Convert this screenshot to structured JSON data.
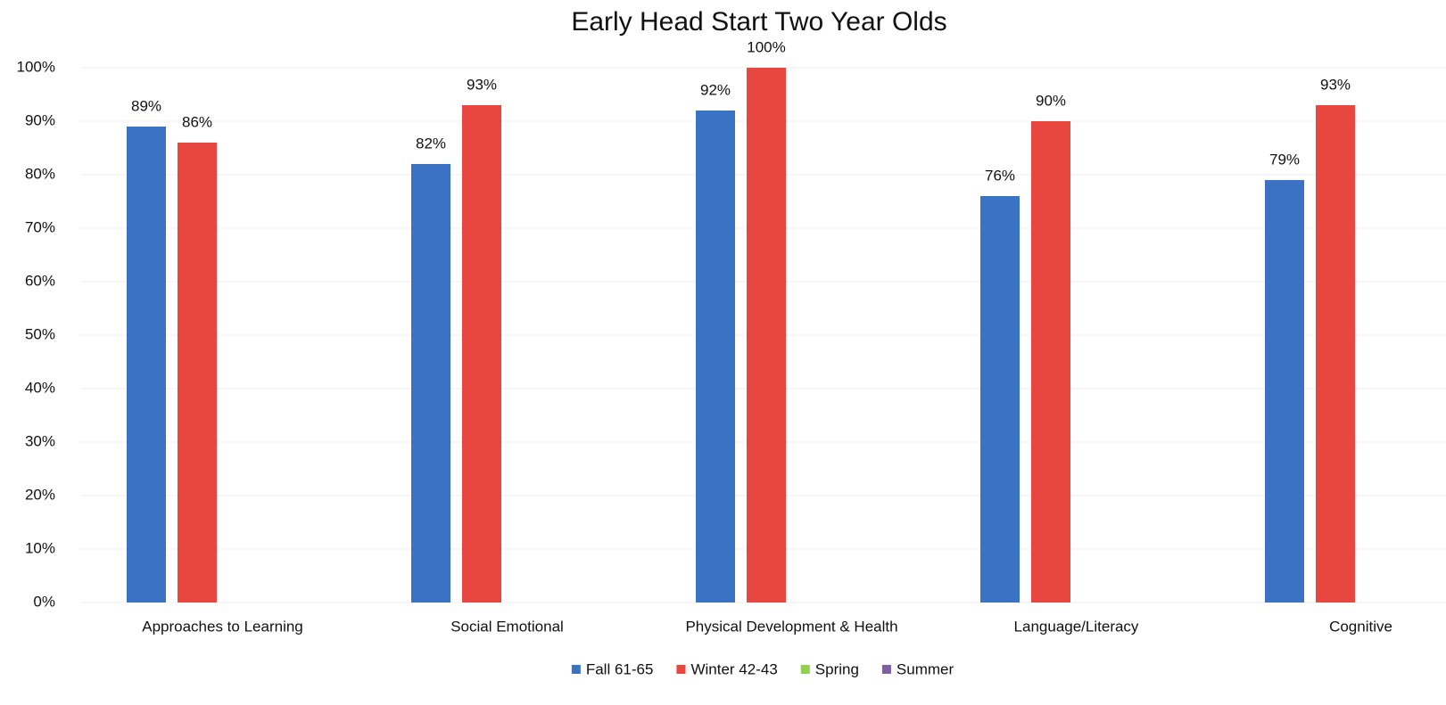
{
  "chart_data": {
    "type": "bar",
    "title": "Early Head Start  Two Year Olds",
    "categories": [
      "Approaches to Learning",
      "Social Emotional",
      "Physical Development & Health",
      "Language/Literacy",
      "Cognitive"
    ],
    "series": [
      {
        "name": "Fall 61-65",
        "color": "#3b72c4",
        "values": [
          89,
          82,
          92,
          76,
          79
        ],
        "value_labels": [
          "89%",
          "82%",
          "92%",
          "76%",
          "79%"
        ]
      },
      {
        "name": "Winter 42-43",
        "color": "#e8473f",
        "values": [
          86,
          93,
          100,
          90,
          93
        ],
        "value_labels": [
          "86%",
          "93%",
          "100%",
          "90%",
          "93%"
        ]
      },
      {
        "name": "Spring",
        "color": "#92d050",
        "values": [
          null,
          null,
          null,
          null,
          null
        ]
      },
      {
        "name": "Summer",
        "color": "#7f5fa3",
        "values": [
          null,
          null,
          null,
          null,
          null
        ]
      }
    ],
    "ylim": [
      0,
      100
    ],
    "yticks": [
      {
        "value": 0,
        "label": "0%"
      },
      {
        "value": 10,
        "label": "10%"
      },
      {
        "value": 20,
        "label": "20%"
      },
      {
        "value": 30,
        "label": "30%"
      },
      {
        "value": 40,
        "label": "40%"
      },
      {
        "value": 50,
        "label": "50%"
      },
      {
        "value": 60,
        "label": "60%"
      },
      {
        "value": 70,
        "label": "70%"
      },
      {
        "value": 80,
        "label": "80%"
      },
      {
        "value": 90,
        "label": "90%"
      },
      {
        "value": 100,
        "label": "100%"
      }
    ],
    "grid": true,
    "legend": "bottom"
  }
}
